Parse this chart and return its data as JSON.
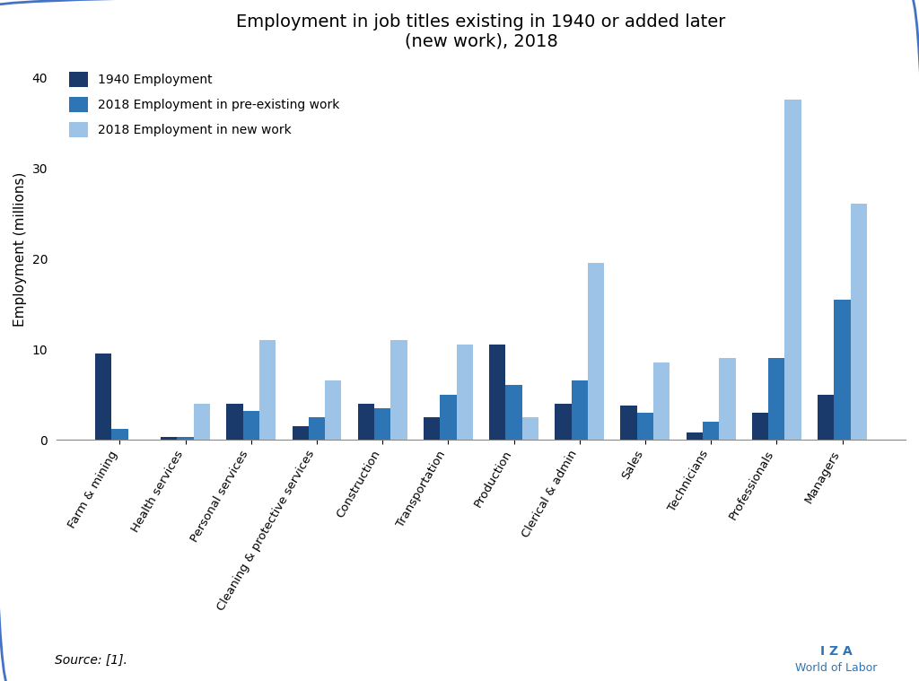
{
  "title": "Employment in job titles existing in 1940 or added later\n(new work), 2018",
  "ylabel": "Employment (millions)",
  "categories": [
    "Farm & mining",
    "Health services",
    "Personal services",
    "Cleaning & protective services",
    "Construction",
    "Transportation",
    "Production",
    "Clerical & admin",
    "Sales",
    "Technicians",
    "Professionals",
    "Managers"
  ],
  "employment_1940": [
    9.5,
    0.3,
    4.0,
    1.5,
    4.0,
    2.5,
    10.5,
    4.0,
    3.8,
    0.8,
    3.0,
    5.0
  ],
  "employment_2018_preexist": [
    1.2,
    0.3,
    3.2,
    2.5,
    3.5,
    5.0,
    6.0,
    6.5,
    3.0,
    2.0,
    9.0,
    15.5
  ],
  "employment_2018_new": [
    0.0,
    4.0,
    11.0,
    6.5,
    11.0,
    10.5,
    2.5,
    19.5,
    8.5,
    9.0,
    37.5,
    26.0
  ],
  "color_1940": "#1a3a6b",
  "color_2018_pre": "#2e75b6",
  "color_2018_new": "#9dc3e6",
  "ylim": [
    0,
    42
  ],
  "yticks": [
    0,
    10,
    20,
    30,
    40
  ],
  "source_text": "Source: [1].",
  "legend_labels": [
    "1940 Employment",
    "2018 Employment in pre-existing work",
    "2018 Employment in new work"
  ],
  "bar_width": 0.25,
  "background_color": "#ffffff",
  "border_color": "#4472c4",
  "footer_iza": "I Z A",
  "footer_wol": "World of Labor"
}
